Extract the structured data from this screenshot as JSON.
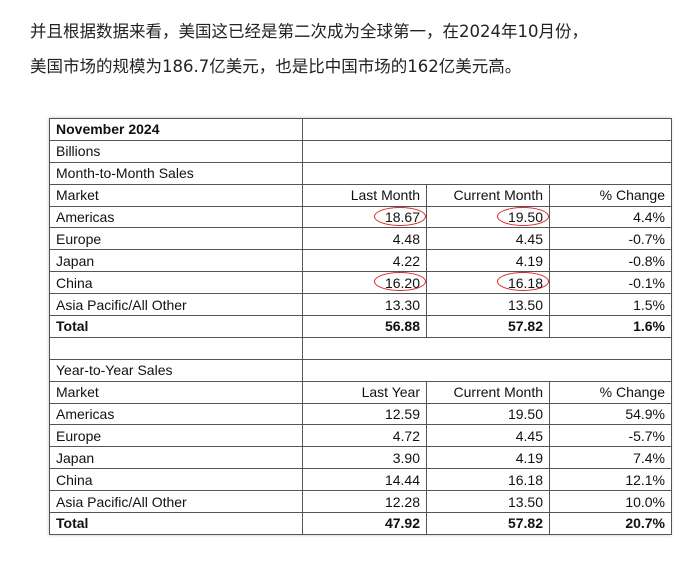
{
  "paragraph": {
    "lines": [
      "并且根据数据来看，美国这已经是第二次成为全球第一，在2024年10月份，",
      "美国市场的规模为186.7亿美元，也是比中国市场的162亿美元高。"
    ]
  },
  "table": {
    "rows": [
      [
        "November 2024"
      ],
      [
        "Billions"
      ],
      [
        "Month-to-Month Sales"
      ],
      [
        "Market",
        "Last Month",
        "Current Month",
        "% Change"
      ],
      [
        "Americas",
        "18.67",
        "19.50",
        "4.4%"
      ],
      [
        "Europe",
        "4.48",
        "4.45",
        "-0.7%"
      ],
      [
        "Japan",
        "4.22",
        "4.19",
        "-0.8%"
      ],
      [
        "China",
        "16.20",
        "16.18",
        "-0.1%"
      ],
      [
        "Asia Pacific/All Other",
        "13.30",
        "13.50",
        "1.5%"
      ],
      [
        "Total",
        "56.88",
        "57.82",
        "1.6%"
      ],
      [],
      [
        "Year-to-Year Sales"
      ],
      [
        "Market",
        "Last Year",
        "Current Month",
        "% Change"
      ],
      [
        "Americas",
        "12.59",
        "19.50",
        "54.9%"
      ],
      [
        "Europe",
        "4.72",
        "4.45",
        "-5.7%"
      ],
      [
        "Japan",
        "3.90",
        "4.19",
        "7.4%"
      ],
      [
        "China",
        "14.44",
        "16.18",
        "12.1%"
      ],
      [
        "Asia Pacific/All Other",
        "12.28",
        "13.50",
        "10.0%"
      ],
      [
        "Total",
        "47.92",
        "57.82",
        "20.7%"
      ]
    ]
  }
}
